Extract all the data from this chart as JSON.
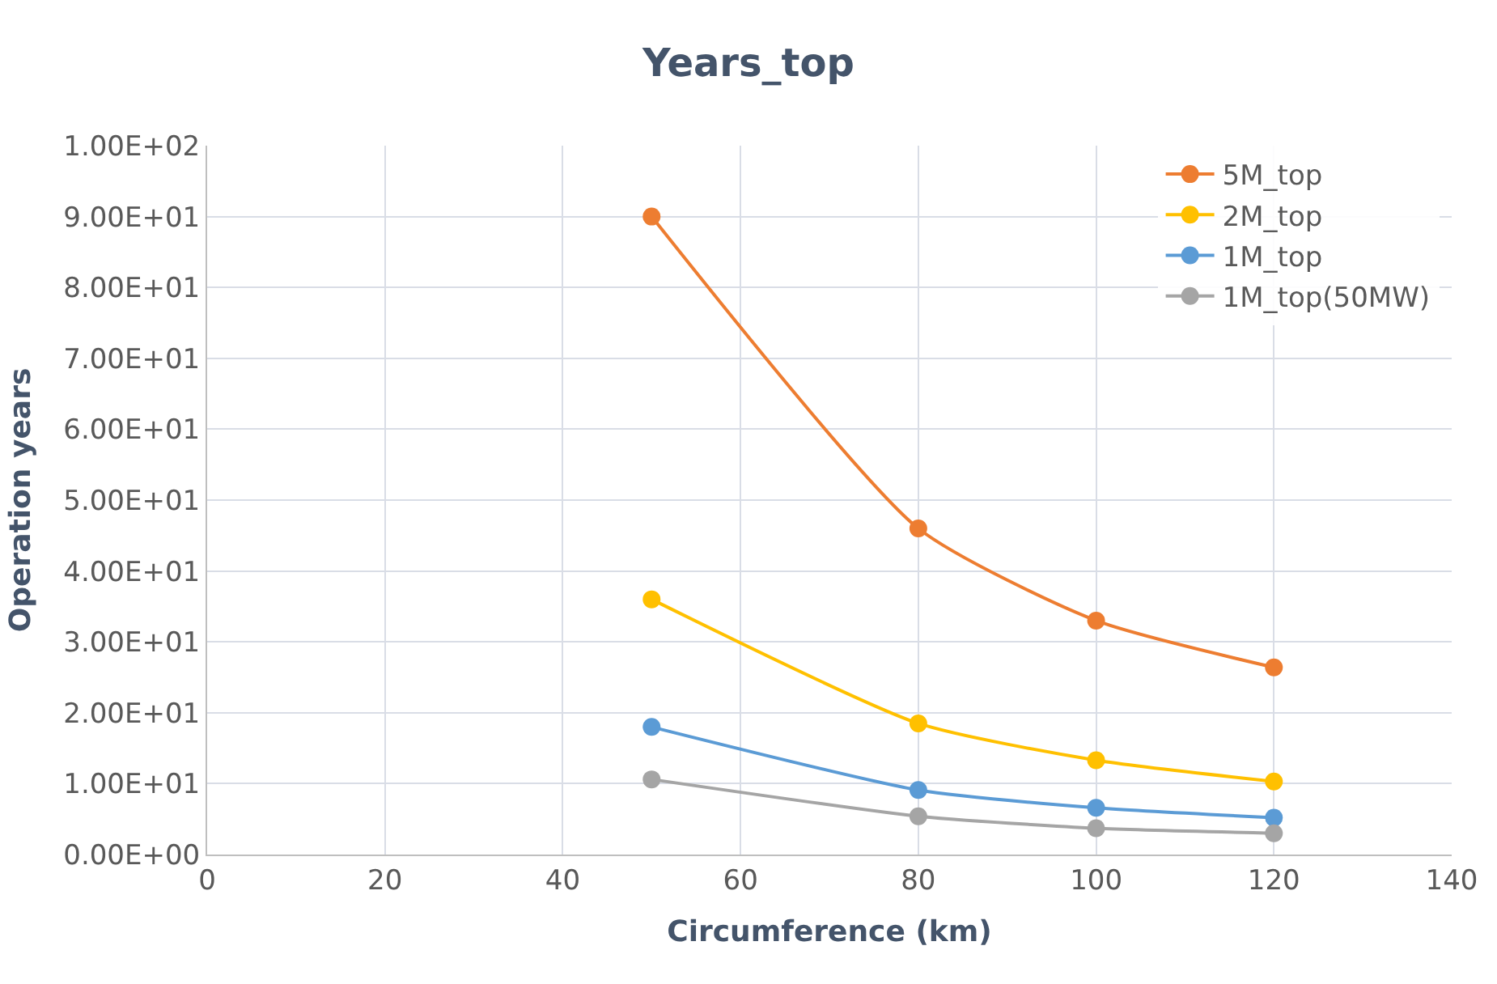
{
  "chart_data": {
    "type": "line",
    "title": "Years_top",
    "xlabel": "Circumference (km)",
    "ylabel": "Operation years",
    "x": [
      50,
      80,
      100,
      120
    ],
    "series": [
      {
        "name": "5M_top",
        "color": "#ed7d31",
        "values": [
          90,
          46,
          33,
          26.4
        ]
      },
      {
        "name": "2M_top",
        "color": "#ffc000",
        "values": [
          36,
          18.5,
          13.3,
          10.3
        ]
      },
      {
        "name": "1M_top",
        "color": "#5b9bd5",
        "values": [
          18,
          9.1,
          6.6,
          5.2
        ]
      },
      {
        "name": "1M_top(50MW)",
        "color": "#a5a5a5",
        "values": [
          10.6,
          5.4,
          3.7,
          3.0
        ]
      }
    ],
    "xlim": [
      0,
      140
    ],
    "xticks": [
      0,
      20,
      40,
      60,
      80,
      100,
      120,
      140
    ],
    "ylim": [
      0,
      100
    ],
    "yticks": [
      {
        "value": 0,
        "label": "0.00E+00"
      },
      {
        "value": 10,
        "label": "1.00E+01"
      },
      {
        "value": 20,
        "label": "2.00E+01"
      },
      {
        "value": 30,
        "label": "3.00E+01"
      },
      {
        "value": 40,
        "label": "4.00E+01"
      },
      {
        "value": 50,
        "label": "5.00E+01"
      },
      {
        "value": 60,
        "label": "6.00E+01"
      },
      {
        "value": 70,
        "label": "7.00E+01"
      },
      {
        "value": 80,
        "label": "8.00E+01"
      },
      {
        "value": 90,
        "label": "9.00E+01"
      },
      {
        "value": 100,
        "label": "1.00E+02"
      }
    ],
    "grid": true,
    "legend": "top right",
    "marker": "circle",
    "line_style": "solid"
  }
}
